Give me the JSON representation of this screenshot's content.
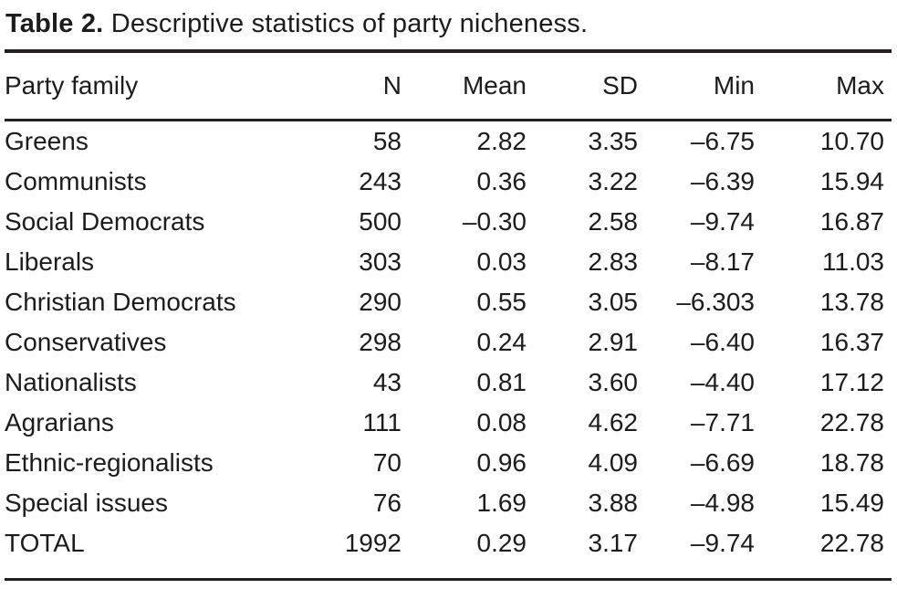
{
  "caption": {
    "label": "Table 2.",
    "text": "Descriptive statistics of party nicheness."
  },
  "colors": {
    "text": "#1c1c1c",
    "rule": "#231f20",
    "background": "#ffffff"
  },
  "table": {
    "columns": [
      "Party family",
      "N",
      "Mean",
      "SD",
      "Min",
      "Max"
    ],
    "rows": [
      {
        "family": "Greens",
        "n": "58",
        "mean": "2.82",
        "sd": "3.35",
        "min": "–6.75",
        "max": "10.70"
      },
      {
        "family": "Communists",
        "n": "243",
        "mean": "0.36",
        "sd": "3.22",
        "min": "–6.39",
        "max": "15.94"
      },
      {
        "family": "Social Democrats",
        "n": "500",
        "mean": "–0.30",
        "sd": "2.58",
        "min": "–9.74",
        "max": "16.87"
      },
      {
        "family": "Liberals",
        "n": "303",
        "mean": "0.03",
        "sd": "2.83",
        "min": "–8.17",
        "max": "11.03"
      },
      {
        "family": "Christian Democrats",
        "n": "290",
        "mean": "0.55",
        "sd": "3.05",
        "min": "–6.303",
        "max": "13.78"
      },
      {
        "family": "Conservatives",
        "n": "298",
        "mean": "0.24",
        "sd": "2.91",
        "min": "–6.40",
        "max": "16.37"
      },
      {
        "family": "Nationalists",
        "n": "43",
        "mean": "0.81",
        "sd": "3.60",
        "min": "–4.40",
        "max": "17.12"
      },
      {
        "family": "Agrarians",
        "n": "111",
        "mean": "0.08",
        "sd": "4.62",
        "min": "–7.71",
        "max": "22.78"
      },
      {
        "family": "Ethnic-regionalists",
        "n": "70",
        "mean": "0.96",
        "sd": "4.09",
        "min": "–6.69",
        "max": "18.78"
      },
      {
        "family": "Special issues",
        "n": "76",
        "mean": "1.69",
        "sd": "3.88",
        "min": "–4.98",
        "max": "15.49"
      },
      {
        "family": "TOTAL",
        "n": "1992",
        "mean": "0.29",
        "sd": "3.17",
        "min": "–9.74",
        "max": "22.78"
      }
    ]
  }
}
